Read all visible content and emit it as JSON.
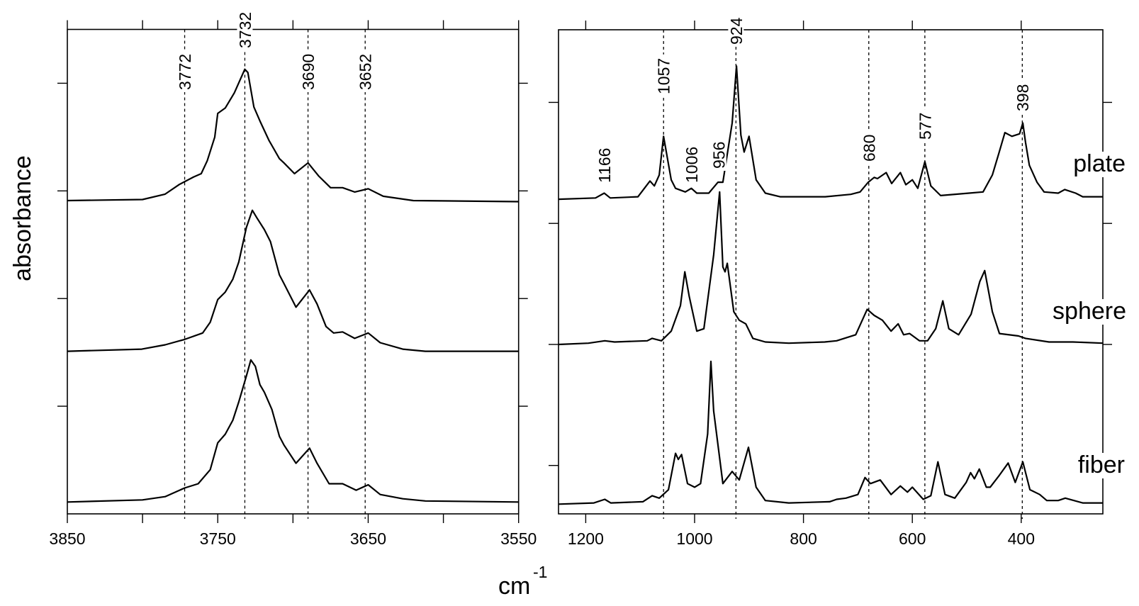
{
  "chart_data": [
    {
      "type": "line",
      "panel": "left",
      "xlim": [
        3850,
        3550
      ],
      "ylim": [
        0,
        4.5
      ],
      "x_reversed": true,
      "grid": false,
      "xticks": [
        3850,
        3750,
        3650,
        3550
      ],
      "xminor": [
        3800,
        3700,
        3600
      ],
      "yticks": [
        1,
        2,
        3,
        4
      ],
      "annotations": [
        {
          "label": "3772",
          "x": 3772
        },
        {
          "label": "3732",
          "x": 3732
        },
        {
          "label": "3690",
          "x": 3690
        },
        {
          "label": "3652",
          "x": 3652
        }
      ],
      "series": [
        {
          "points": [
            [
              3850,
              2.91
            ],
            [
              3800,
              2.92
            ],
            [
              3785,
              2.97
            ],
            [
              3775.5,
              3.06
            ],
            [
              3766,
              3.13
            ],
            [
              3761,
              3.16
            ],
            [
              3757,
              3.28
            ],
            [
              3752,
              3.5
            ],
            [
              3750,
              3.72
            ],
            [
              3745,
              3.77
            ],
            [
              3739,
              3.91
            ],
            [
              3732,
              4.13
            ],
            [
              3730,
              4.1
            ],
            [
              3726,
              3.78
            ],
            [
              3722,
              3.65
            ],
            [
              3716,
              3.47
            ],
            [
              3709,
              3.3
            ],
            [
              3706,
              3.26
            ],
            [
              3699,
              3.16
            ],
            [
              3690,
              3.26
            ],
            [
              3683,
              3.14
            ],
            [
              3675,
              3.03
            ],
            [
              3667,
              3.03
            ],
            [
              3659,
              2.99
            ],
            [
              3650,
              3.02
            ],
            [
              3640,
              2.95
            ],
            [
              3620,
              2.91
            ],
            [
              3550,
              2.9
            ]
          ]
        },
        {
          "points": [
            [
              3850,
              1.51
            ],
            [
              3800.5,
              1.53
            ],
            [
              3785,
              1.57
            ],
            [
              3772,
              1.62
            ],
            [
              3760,
              1.68
            ],
            [
              3755,
              1.78
            ],
            [
              3750,
              1.99
            ],
            [
              3745,
              2.06
            ],
            [
              3740,
              2.18
            ],
            [
              3736,
              2.34
            ],
            [
              3731,
              2.66
            ],
            [
              3727,
              2.82
            ],
            [
              3724,
              2.75
            ],
            [
              3719,
              2.64
            ],
            [
              3715,
              2.53
            ],
            [
              3709,
              2.22
            ],
            [
              3706,
              2.14
            ],
            [
              3698,
              1.92
            ],
            [
              3689,
              2.08
            ],
            [
              3684,
              1.95
            ],
            [
              3678,
              1.74
            ],
            [
              3673,
              1.68
            ],
            [
              3667,
              1.69
            ],
            [
              3659,
              1.63
            ],
            [
              3650,
              1.68
            ],
            [
              3642,
              1.59
            ],
            [
              3627,
              1.53
            ],
            [
              3612,
              1.51
            ],
            [
              3550,
              1.51
            ]
          ]
        },
        {
          "points": [
            [
              3850,
              0.11
            ],
            [
              3800,
              0.13
            ],
            [
              3785,
              0.16
            ],
            [
              3772,
              0.24
            ],
            [
              3763,
              0.28
            ],
            [
              3755,
              0.41
            ],
            [
              3750,
              0.66
            ],
            [
              3745,
              0.74
            ],
            [
              3740,
              0.87
            ],
            [
              3736,
              1.04
            ],
            [
              3731,
              1.28
            ],
            [
              3728,
              1.43
            ],
            [
              3725,
              1.37
            ],
            [
              3722,
              1.2
            ],
            [
              3719,
              1.13
            ],
            [
              3714,
              0.97
            ],
            [
              3709,
              0.72
            ],
            [
              3706,
              0.64
            ],
            [
              3698,
              0.47
            ],
            [
              3689,
              0.61
            ],
            [
              3684,
              0.47
            ],
            [
              3676,
              0.28
            ],
            [
              3667,
              0.28
            ],
            [
              3658,
              0.22
            ],
            [
              3650,
              0.27
            ],
            [
              3642,
              0.18
            ],
            [
              3627,
              0.14
            ],
            [
              3612,
              0.12
            ],
            [
              3550,
              0.11
            ]
          ]
        }
      ],
      "ylabel": "absorbance"
    },
    {
      "type": "line",
      "panel": "right",
      "xlim": [
        1250,
        250
      ],
      "ylim": [
        0,
        4
      ],
      "x_reversed": true,
      "grid": false,
      "xticks": [
        1200,
        1000,
        800,
        600,
        400
      ],
      "yticks": [
        0.4,
        1.4,
        2.4,
        3.4
      ],
      "annotations": [
        {
          "label": "1166",
          "x": 1166,
          "line": false
        },
        {
          "label": "1057",
          "x": 1057,
          "line": true
        },
        {
          "label": "1006",
          "x": 1006,
          "line": false
        },
        {
          "label": "956",
          "x": 956,
          "line": false
        },
        {
          "label": "924",
          "x": 924,
          "line": true
        },
        {
          "label": "680",
          "x": 680,
          "line": true
        },
        {
          "label": "577",
          "x": 577,
          "line": true
        },
        {
          "label": "398",
          "x": 398,
          "line": true
        }
      ],
      "series": [
        {
          "name": "plate",
          "points": [
            [
              1250,
              2.6
            ],
            [
              1182,
              2.61
            ],
            [
              1166,
              2.65
            ],
            [
              1155,
              2.61
            ],
            [
              1104,
              2.62
            ],
            [
              1082,
              2.75
            ],
            [
              1074,
              2.71
            ],
            [
              1065,
              2.8
            ],
            [
              1057,
              3.12
            ],
            [
              1043,
              2.76
            ],
            [
              1035,
              2.69
            ],
            [
              1017,
              2.66
            ],
            [
              1006,
              2.69
            ],
            [
              996,
              2.65
            ],
            [
              974,
              2.65
            ],
            [
              957,
              2.74
            ],
            [
              948,
              2.74
            ],
            [
              931,
              3.23
            ],
            [
              923,
              3.7
            ],
            [
              915,
              3.13
            ],
            [
              909,
              2.99
            ],
            [
              900,
              3.12
            ],
            [
              887,
              2.76
            ],
            [
              870,
              2.65
            ],
            [
              843,
              2.62
            ],
            [
              760,
              2.62
            ],
            [
              713,
              2.64
            ],
            [
              696,
              2.66
            ],
            [
              681,
              2.74
            ],
            [
              670,
              2.78
            ],
            [
              664,
              2.77
            ],
            [
              648,
              2.82
            ],
            [
              638,
              2.73
            ],
            [
              622,
              2.82
            ],
            [
              612,
              2.72
            ],
            [
              600,
              2.76
            ],
            [
              590,
              2.69
            ],
            [
              577,
              2.91
            ],
            [
              566,
              2.71
            ],
            [
              548,
              2.63
            ],
            [
              496,
              2.65
            ],
            [
              470,
              2.66
            ],
            [
              453,
              2.8
            ],
            [
              441,
              2.98
            ],
            [
              430,
              3.15
            ],
            [
              417,
              3.12
            ],
            [
              403,
              3.14
            ],
            [
              397,
              3.23
            ],
            [
              392,
              3.07
            ],
            [
              385,
              2.88
            ],
            [
              371,
              2.74
            ],
            [
              358,
              2.66
            ],
            [
              332,
              2.65
            ],
            [
              320,
              2.68
            ],
            [
              300,
              2.65
            ],
            [
              287,
              2.62
            ],
            [
              250,
              2.62
            ]
          ]
        },
        {
          "name": "sphere",
          "points": [
            [
              1250,
              1.4
            ],
            [
              1195,
              1.41
            ],
            [
              1165,
              1.43
            ],
            [
              1147,
              1.42
            ],
            [
              1087,
              1.43
            ],
            [
              1078,
              1.45
            ],
            [
              1061,
              1.43
            ],
            [
              1043,
              1.51
            ],
            [
              1026,
              1.72
            ],
            [
              1018,
              2.0
            ],
            [
              1010,
              1.8
            ],
            [
              996,
              1.51
            ],
            [
              983,
              1.53
            ],
            [
              965,
              2.14
            ],
            [
              954,
              2.66
            ],
            [
              948,
              2.04
            ],
            [
              944,
              2.0
            ],
            [
              940,
              2.07
            ],
            [
              928,
              1.67
            ],
            [
              918,
              1.6
            ],
            [
              906,
              1.57
            ],
            [
              893,
              1.45
            ],
            [
              870,
              1.42
            ],
            [
              827,
              1.41
            ],
            [
              761,
              1.42
            ],
            [
              739,
              1.43
            ],
            [
              704,
              1.48
            ],
            [
              683,
              1.69
            ],
            [
              670,
              1.64
            ],
            [
              655,
              1.6
            ],
            [
              639,
              1.51
            ],
            [
              626,
              1.57
            ],
            [
              616,
              1.48
            ],
            [
              605,
              1.49
            ],
            [
              587,
              1.43
            ],
            [
              572,
              1.43
            ],
            [
              557,
              1.53
            ],
            [
              544,
              1.76
            ],
            [
              533,
              1.53
            ],
            [
              515,
              1.48
            ],
            [
              492,
              1.65
            ],
            [
              476,
              1.92
            ],
            [
              467,
              2.01
            ],
            [
              453,
              1.67
            ],
            [
              440,
              1.49
            ],
            [
              405,
              1.47
            ],
            [
              392,
              1.45
            ],
            [
              349,
              1.42
            ],
            [
              305,
              1.42
            ],
            [
              250,
              1.41
            ]
          ]
        },
        {
          "name": "fiber",
          "points": [
            [
              1250,
              0.08
            ],
            [
              1185,
              0.09
            ],
            [
              1165,
              0.12
            ],
            [
              1154,
              0.09
            ],
            [
              1095,
              0.1
            ],
            [
              1078,
              0.15
            ],
            [
              1065,
              0.13
            ],
            [
              1048,
              0.2
            ],
            [
              1035,
              0.5
            ],
            [
              1030,
              0.45
            ],
            [
              1024,
              0.49
            ],
            [
              1013,
              0.25
            ],
            [
              1000,
              0.22
            ],
            [
              989,
              0.25
            ],
            [
              976,
              0.66
            ],
            [
              970,
              1.26
            ],
            [
              965,
              0.85
            ],
            [
              948,
              0.25
            ],
            [
              931,
              0.35
            ],
            [
              918,
              0.28
            ],
            [
              901,
              0.55
            ],
            [
              887,
              0.22
            ],
            [
              870,
              0.11
            ],
            [
              827,
              0.09
            ],
            [
              752,
              0.1
            ],
            [
              739,
              0.12
            ],
            [
              722,
              0.13
            ],
            [
              700,
              0.16
            ],
            [
              687,
              0.3
            ],
            [
              677,
              0.25
            ],
            [
              659,
              0.28
            ],
            [
              639,
              0.16
            ],
            [
              622,
              0.23
            ],
            [
              609,
              0.18
            ],
            [
              600,
              0.22
            ],
            [
              580,
              0.12
            ],
            [
              566,
              0.15
            ],
            [
              553,
              0.43
            ],
            [
              540,
              0.16
            ],
            [
              522,
              0.13
            ],
            [
              501,
              0.26
            ],
            [
              493,
              0.34
            ],
            [
              486,
              0.29
            ],
            [
              477,
              0.37
            ],
            [
              464,
              0.22
            ],
            [
              457,
              0.22
            ],
            [
              440,
              0.32
            ],
            [
              424,
              0.42
            ],
            [
              411,
              0.26
            ],
            [
              397,
              0.43
            ],
            [
              384,
              0.2
            ],
            [
              366,
              0.16
            ],
            [
              353,
              0.11
            ],
            [
              332,
              0.11
            ],
            [
              319,
              0.13
            ],
            [
              287,
              0.09
            ],
            [
              250,
              0.09
            ]
          ]
        }
      ]
    }
  ],
  "xlabel": {
    "base": "cm",
    "superscript": "-1"
  },
  "colors": {
    "line": "#000000",
    "background": "#ffffff"
  }
}
